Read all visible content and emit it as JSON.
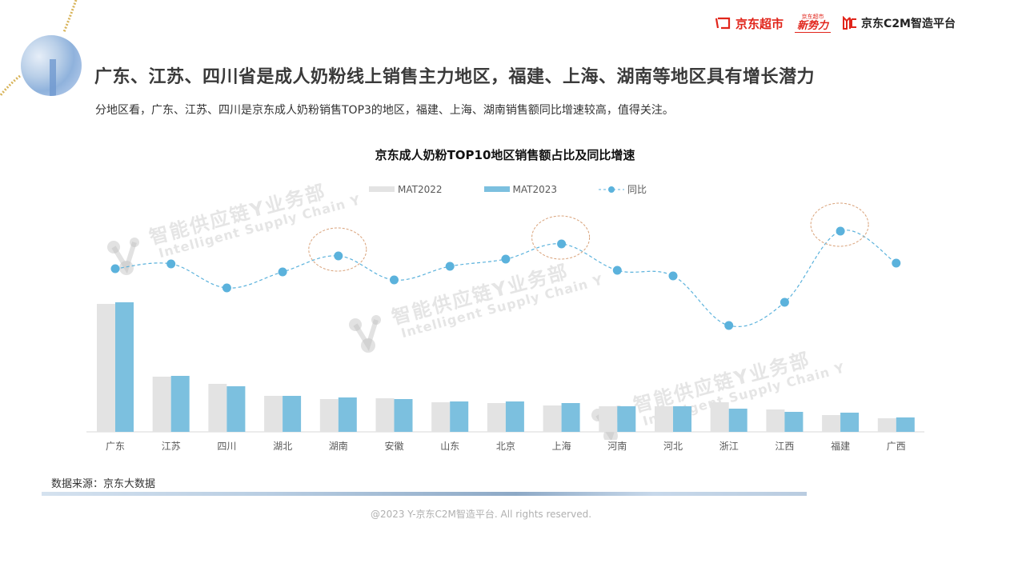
{
  "header": {
    "logos": [
      "京东超市",
      "京东超市 新势力",
      "京东C2M智造平台"
    ],
    "logo_jd_supermarket": "京东超市",
    "logo_new_small": "京东超市",
    "logo_new_main": "新势力",
    "logo_c2m": "京东C2M智造平台"
  },
  "page": {
    "title": "广东、江苏、四川省是成人奶粉线上销售主力地区，福建、上海、湖南等地区具有增长潜力",
    "subtitle": "分地区看，广东、江苏、四川是京东成人奶粉销售TOP3的地区，福建、上海、湖南销售额同比增速较高，值得关注。"
  },
  "watermark": {
    "cn": "智能供应链Y业务部",
    "en": "Intelligent Supply Chain Y"
  },
  "colors": {
    "mat2022": "#e3e3e3",
    "mat2023": "#7cc0df",
    "yoy_line": "#5bb2dc",
    "highlight_circle": "#d9a27a"
  },
  "chart_data": {
    "type": "bar",
    "title": "京东成人奶粉TOP10地区销售额占比及同比增速",
    "xlabel": "",
    "ylabel": "",
    "grid": false,
    "legend_position": "top",
    "axis_values_shown": false,
    "categories": [
      "广东",
      "江苏",
      "四川",
      "湖北",
      "湖南",
      "安徽",
      "山东",
      "北京",
      "上海",
      "河南",
      "河北",
      "浙江",
      "江西",
      "福建",
      "广西"
    ],
    "series": [
      {
        "name": "MAT2022",
        "type": "bar",
        "values": [
          160,
          69,
          60,
          45,
          41,
          42,
          37,
          36,
          33,
          32,
          32,
          37,
          28,
          21,
          17
        ],
        "unit": "relative bar height (px, no axis shown)"
      },
      {
        "name": "MAT2023",
        "type": "bar",
        "values": [
          162,
          70,
          57,
          45,
          43,
          41,
          38,
          38,
          36,
          32,
          32,
          29,
          25,
          24,
          18
        ],
        "unit": "relative bar height (px, no axis shown)"
      },
      {
        "name": "同比",
        "type": "line",
        "style": "dashed, smoothed, circle markers",
        "values": [
          204,
          210,
          180,
          200,
          220,
          190,
          207,
          216,
          235,
          202,
          195,
          133,
          162,
          251,
          211
        ],
        "unit": "relative line height (px above baseline, no axis shown)"
      }
    ],
    "highlighted_points": [
      "湖南",
      "上海",
      "福建"
    ]
  },
  "legend": {
    "items": [
      {
        "label": "MAT2022"
      },
      {
        "label": "MAT2023"
      },
      {
        "label": "同比"
      }
    ]
  },
  "source": "数据来源：京东大数据",
  "footer": "@2023 Y-京东C2M智造平台. All rights reserved."
}
